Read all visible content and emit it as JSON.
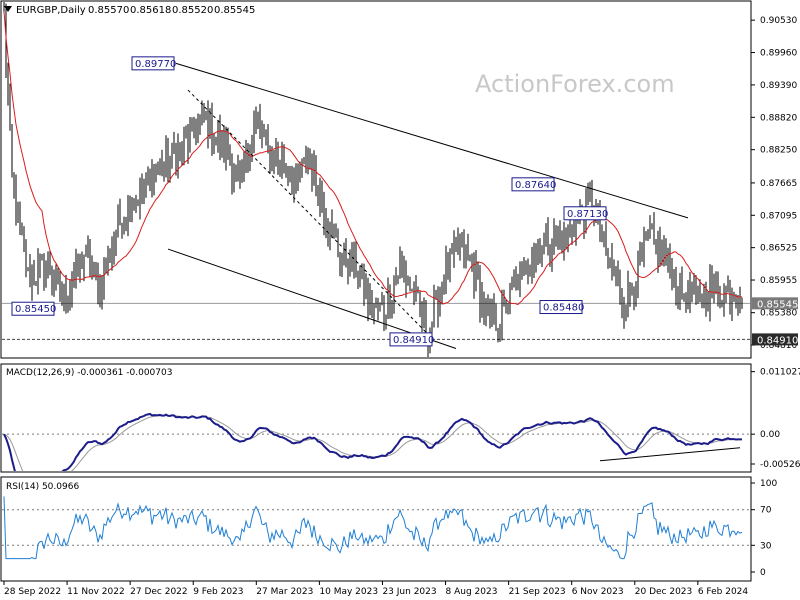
{
  "chart_data": [
    {
      "type": "candlestick",
      "symbol": "EURGBP,Daily",
      "ohlc": [
        "0.85570",
        "0.85618",
        "0.85520",
        "0.85545"
      ],
      "watermark": "ActionForex.com",
      "ylim": [
        0.846,
        0.9085
      ],
      "y_ticks": [
        "0.90530",
        "0.89960",
        "0.89390",
        "0.88820",
        "0.88250",
        "0.87665",
        "0.87095",
        "0.86525",
        "0.85955",
        "0.85380",
        "0.84810"
      ],
      "current_price": "0.85545",
      "hline_price": "0.84910",
      "x_ticks": [
        "28 Sep 2022",
        "11 Nov 2022",
        "27 Dec 2022",
        "9 Feb 2023",
        "27 Mar 2023",
        "10 May 2023",
        "23 Jun 2023",
        "8 Aug 2023",
        "21 Sep 2023",
        "6 Nov 2023",
        "20 Dec 2023",
        "6 Feb 2024"
      ],
      "price_path": [
        [
          0,
          0.906
        ],
        [
          4,
          0.877
        ],
        [
          12,
          0.86
        ],
        [
          22,
          0.862
        ],
        [
          30,
          0.856
        ],
        [
          40,
          0.864
        ],
        [
          48,
          0.858
        ],
        [
          58,
          0.87
        ],
        [
          70,
          0.876
        ],
        [
          80,
          0.88
        ],
        [
          90,
          0.883
        ],
        [
          100,
          0.888
        ],
        [
          110,
          0.883
        ],
        [
          118,
          0.876
        ],
        [
          126,
          0.888
        ],
        [
          132,
          0.882
        ],
        [
          140,
          0.88
        ],
        [
          146,
          0.876
        ],
        [
          152,
          0.881
        ],
        [
          160,
          0.872
        ],
        [
          168,
          0.864
        ],
        [
          176,
          0.862
        ],
        [
          182,
          0.856
        ],
        [
          190,
          0.854
        ],
        [
          198,
          0.862
        ],
        [
          206,
          0.856
        ],
        [
          212,
          0.85
        ],
        [
          220,
          0.86
        ],
        [
          228,
          0.866
        ],
        [
          236,
          0.86
        ],
        [
          242,
          0.852
        ],
        [
          248,
          0.853
        ],
        [
          256,
          0.859
        ],
        [
          264,
          0.864
        ],
        [
          272,
          0.866
        ],
        [
          280,
          0.867
        ],
        [
          288,
          0.871
        ],
        [
          294,
          0.874
        ],
        [
          300,
          0.865
        ],
        [
          306,
          0.86
        ],
        [
          310,
          0.855
        ],
        [
          316,
          0.86
        ],
        [
          322,
          0.867
        ],
        [
          330,
          0.864
        ],
        [
          338,
          0.858
        ],
        [
          346,
          0.856
        ],
        [
          354,
          0.858
        ],
        [
          362,
          0.857
        ],
        [
          368,
          0.8575
        ]
      ],
      "annotations": [
        {
          "label": "0.89770",
          "price": 0.8977,
          "bar": 86
        },
        {
          "label": "0.85450",
          "price": 0.8545,
          "bar": 26
        },
        {
          "label": "0.84910",
          "price": 0.8491,
          "bar": 215
        },
        {
          "label": "0.87640",
          "price": 0.8764,
          "bar": 276
        },
        {
          "label": "0.87130",
          "price": 0.8713,
          "bar": 302
        },
        {
          "label": "0.85480",
          "price": 0.8548,
          "bar": 290
        }
      ],
      "trendlines": [
        {
          "from": [
            86,
            0.8977
          ],
          "to": [
            342,
            0.8705
          ]
        },
        {
          "from": [
            82,
            0.865
          ],
          "to": [
            226,
            0.8475
          ]
        },
        {
          "from": [
            92,
            0.893
          ],
          "to": [
            212,
            0.85
          ]
        }
      ],
      "bars_total": 370
    },
    {
      "type": "line",
      "name": "MACD(12,26,9) -0.000361 -0.000703",
      "ylim": [
        -0.0065,
        0.0122
      ],
      "y_ticks": [
        "0.011027",
        "0.00",
        "-0.005267"
      ],
      "zero_line": true,
      "trendline": {
        "from": [
          298,
          -0.0047
        ],
        "to": [
          368,
          -0.0024
        ]
      }
    },
    {
      "type": "line",
      "name": "RSI(14) 50.0966",
      "ylim": [
        0,
        100
      ],
      "y_ticks": [
        "100",
        "70",
        "30",
        "0"
      ],
      "levels": [
        70,
        30
      ]
    }
  ]
}
